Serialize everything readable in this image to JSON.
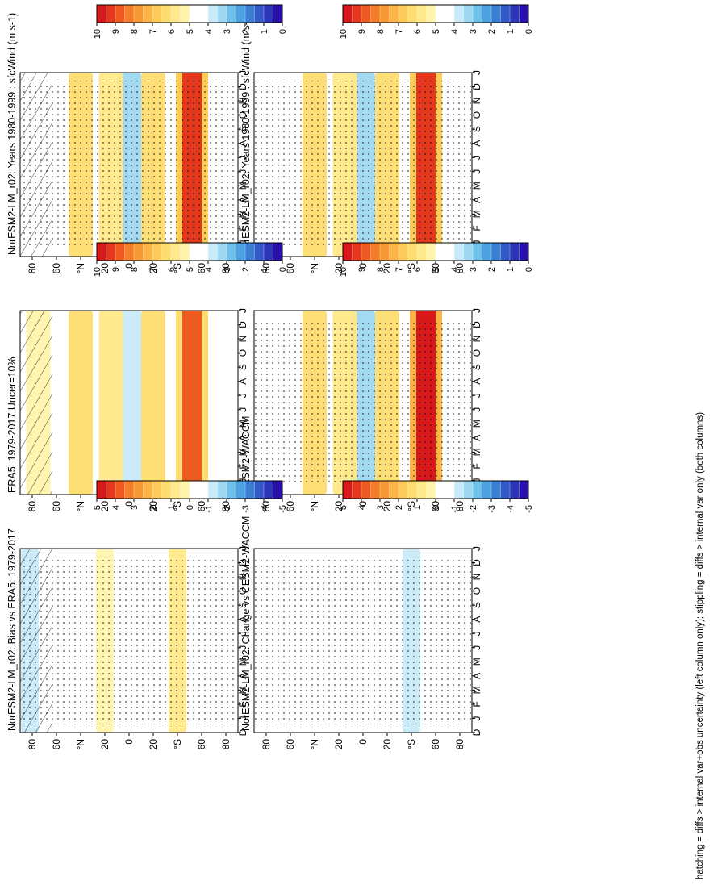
{
  "figure": {
    "variable": "sfcWind",
    "units_label": "(m s-1)",
    "footnote": "hatching = diffs > internal var+obs uncertainty (left column only); stippling = diffs > internal var only (both columns)"
  },
  "colorbars": {
    "abs": {
      "ticks": [
        "10",
        "9",
        "8",
        "7",
        "6",
        "5",
        "4",
        "3",
        "2",
        "1",
        "0"
      ],
      "colors": [
        "#d7191c",
        "#e3381d",
        "#ee5a20",
        "#f47d2a",
        "#f89a34",
        "#fbb445",
        "#fdcb58",
        "#fedc70",
        "#ffe98a",
        "#fff4ac",
        "#ffffff",
        "#ffffff",
        "#c9eaf8",
        "#9fd7f1",
        "#6dc0ea",
        "#4aa2e0",
        "#3a7fd4",
        "#3259c6",
        "#2b36b8",
        "#2a10aa"
      ]
    },
    "diff": {
      "ticks": [
        "5",
        "4",
        "3",
        "2",
        "1",
        "0",
        "-1",
        "-2",
        "-3",
        "-4",
        "-5"
      ],
      "colors": [
        "#d7191c",
        "#e3381d",
        "#ee5a20",
        "#f47d2a",
        "#f89a34",
        "#fbb445",
        "#fdcb58",
        "#fedc70",
        "#ffe98a",
        "#fff4ac",
        "#ffffff",
        "#ffffff",
        "#c9eaf8",
        "#9fd7f1",
        "#6dc0ea",
        "#4aa2e0",
        "#3a7fd4",
        "#3259c6",
        "#2b36b8",
        "#2a10aa"
      ]
    }
  },
  "chart_data": [
    {
      "id": "p1",
      "type": "heatmap",
      "title": "NorESM2-LM_r02: Years 1980-1999 : sfcWind",
      "title_units": "(m s-1)",
      "colorbar": "abs",
      "xlabel": "month",
      "ylabel": "latitude",
      "x_ticks": [
        "D",
        "J",
        "F",
        "M",
        "A",
        "M",
        "J",
        "J",
        "A",
        "S",
        "O",
        "N",
        "D",
        "J"
      ],
      "y_ticks": [
        "80",
        "60",
        "°N",
        "20",
        "0",
        "20",
        "°S",
        "60",
        "80"
      ],
      "ylim": [
        -90,
        90
      ],
      "hatching": true,
      "stippling": true,
      "features": [
        {
          "lat": -52,
          "value": 9.5
        },
        {
          "lat": -20,
          "value": 6.5
        },
        {
          "lat": 0,
          "value": 3.5
        },
        {
          "lat": 15,
          "value": 6.0
        },
        {
          "lat": 40,
          "value": 6.5
        },
        {
          "lat": 75,
          "value": 5.0
        }
      ]
    },
    {
      "id": "p2",
      "type": "heatmap",
      "title": "NorESM2-LM_r02: Years 1980-1999 : sfcWind",
      "title_units": "(m s-1)",
      "colorbar": "abs",
      "xlabel": "month",
      "ylabel": "latitude",
      "x_ticks": [
        "D",
        "J",
        "F",
        "M",
        "A",
        "M",
        "J",
        "J",
        "A",
        "S",
        "O",
        "N",
        "D",
        "J"
      ],
      "y_ticks": [
        "80",
        "60",
        "°N",
        "20",
        "0",
        "20",
        "°S",
        "60",
        "80"
      ],
      "ylim": [
        -90,
        90
      ],
      "hatching": false,
      "stippling": true,
      "features": [
        {
          "lat": -52,
          "value": 9.5
        },
        {
          "lat": -20,
          "value": 6.5
        },
        {
          "lat": 0,
          "value": 3.5
        },
        {
          "lat": 15,
          "value": 6.0
        },
        {
          "lat": 40,
          "value": 6.5
        },
        {
          "lat": 75,
          "value": 5.0
        }
      ]
    },
    {
      "id": "p3",
      "type": "heatmap",
      "title": "ERA5: 1979-2017 Uncer=10%",
      "title_units": "",
      "colorbar": "abs",
      "xlabel": "month",
      "ylabel": "latitude",
      "x_ticks": [
        "D",
        "J",
        "F",
        "M",
        "A",
        "M",
        "J",
        "J",
        "A",
        "S",
        "O",
        "N",
        "D",
        "J"
      ],
      "y_ticks": [
        "80",
        "60",
        "°N",
        "20",
        "0",
        "20",
        "°S",
        "60",
        "80"
      ],
      "ylim": [
        -90,
        90
      ],
      "hatching": true,
      "stippling": false,
      "features": [
        {
          "lat": -52,
          "value": 9.0
        },
        {
          "lat": -20,
          "value": 6.5
        },
        {
          "lat": 0,
          "value": 4.0
        },
        {
          "lat": 15,
          "value": 6.0
        },
        {
          "lat": 40,
          "value": 6.5
        },
        {
          "lat": 75,
          "value": 5.5
        }
      ]
    },
    {
      "id": "p4",
      "type": "heatmap",
      "title": "CESM2-WACCM",
      "title_units": "",
      "colorbar": "abs",
      "xlabel": "month",
      "ylabel": "latitude",
      "x_ticks": [
        "D",
        "J",
        "F",
        "M",
        "A",
        "M",
        "J",
        "J",
        "A",
        "S",
        "O",
        "N",
        "D",
        "J"
      ],
      "y_ticks": [
        "80",
        "60",
        "°N",
        "20",
        "0",
        "20",
        "°S",
        "60",
        "80"
      ],
      "ylim": [
        -90,
        90
      ],
      "hatching": false,
      "stippling": true,
      "features": [
        {
          "lat": -52,
          "value": 10.0
        },
        {
          "lat": -20,
          "value": 6.5
        },
        {
          "lat": 0,
          "value": 3.5
        },
        {
          "lat": 15,
          "value": 6.0
        },
        {
          "lat": 40,
          "value": 6.5
        },
        {
          "lat": 75,
          "value": 5.0
        }
      ]
    },
    {
      "id": "p5",
      "type": "heatmap",
      "title": "NorESM2-LM_r02: Bias vs ERA5: 1979-2017",
      "title_units": "",
      "colorbar": "diff",
      "xlabel": "month",
      "ylabel": "latitude",
      "x_ticks": [
        "D",
        "J",
        "F",
        "M",
        "A",
        "M",
        "J",
        "J",
        "A",
        "S",
        "O",
        "N",
        "D",
        "J"
      ],
      "y_ticks": [
        "80",
        "60",
        "°N",
        "20",
        "0",
        "20",
        "°S",
        "60",
        "80"
      ],
      "ylim": [
        -90,
        90
      ],
      "hatching": true,
      "stippling": true,
      "features": [
        {
          "lat": -65,
          "value": -0.6
        },
        {
          "lat": -40,
          "value": 0.6
        },
        {
          "lat": 0,
          "value": -0.6
        },
        {
          "lat": 20,
          "value": 0.5
        },
        {
          "lat": 82,
          "value": -1.2
        }
      ]
    },
    {
      "id": "p6",
      "type": "heatmap",
      "title": "NorESM2-LM_r02: Change vs CESM2-WACCM",
      "title_units": "",
      "colorbar": "diff",
      "xlabel": "month",
      "ylabel": "latitude",
      "x_ticks": [
        "D",
        "J",
        "F",
        "M",
        "A",
        "M",
        "J",
        "J",
        "A",
        "S",
        "O",
        "N",
        "D",
        "J"
      ],
      "y_ticks": [
        "80",
        "60",
        "°N",
        "20",
        "0",
        "20",
        "°S",
        "60",
        "80"
      ],
      "ylim": [
        -90,
        90
      ],
      "hatching": false,
      "stippling": true,
      "features": [
        {
          "lat": -40,
          "value": -1.2
        },
        {
          "lat": 0,
          "value": -0.8
        },
        {
          "lat": 40,
          "value": -0.6
        },
        {
          "lat": 80,
          "value": -0.8
        }
      ]
    }
  ]
}
